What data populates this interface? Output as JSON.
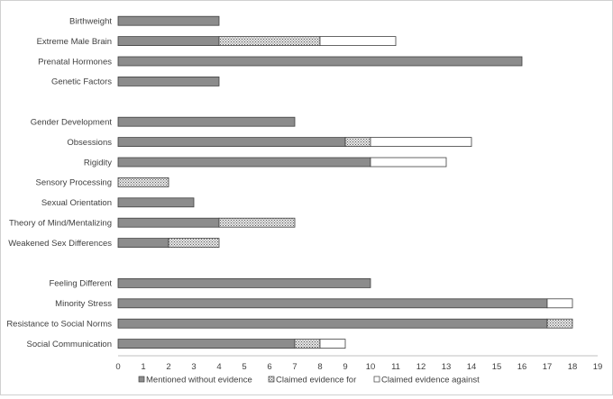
{
  "chart_data": {
    "type": "bar",
    "orientation": "horizontal",
    "stacked": true,
    "xlim": [
      0,
      19
    ],
    "x_ticks": [
      "0",
      "1",
      "2",
      "3",
      "4",
      "5",
      "6",
      "7",
      "8",
      "9",
      "10",
      "11",
      "12",
      "13",
      "14",
      "15",
      "16",
      "17",
      "18",
      "19"
    ],
    "grid": false,
    "legend_position": "bottom",
    "categories": [
      "Birthweight",
      "Extreme Male Brain",
      "Prenatal Hormones",
      "Genetic Factors",
      "",
      "Gender Development",
      "Obsessions",
      "Rigidity",
      "Sensory Processing",
      "Sexual Orientation",
      "Theory of Mind/Mentalizing",
      "Weakened Sex Differences",
      "",
      "Feeling Different",
      "Minority Stress",
      "Resistance to Social Norms",
      "Social Communication"
    ],
    "series": [
      {
        "name": "Mentioned without evidence",
        "color": "#8c8c8c",
        "pattern": "solid",
        "values": [
          4,
          4,
          16,
          4,
          null,
          7,
          9,
          10,
          0,
          3,
          4,
          2,
          null,
          10,
          17,
          17,
          7
        ]
      },
      {
        "name": "Claimed evidence for",
        "color": "#d4d4d4",
        "pattern": "crosshatch",
        "values": [
          0,
          4,
          0,
          0,
          null,
          0,
          1,
          0,
          2,
          0,
          3,
          2,
          null,
          0,
          0,
          1,
          1
        ]
      },
      {
        "name": "Claimed evidence against",
        "color": "#ffffff",
        "pattern": "solid",
        "values": [
          0,
          3,
          0,
          0,
          null,
          0,
          4,
          3,
          0,
          0,
          0,
          0,
          null,
          0,
          1,
          0,
          1
        ]
      }
    ]
  }
}
